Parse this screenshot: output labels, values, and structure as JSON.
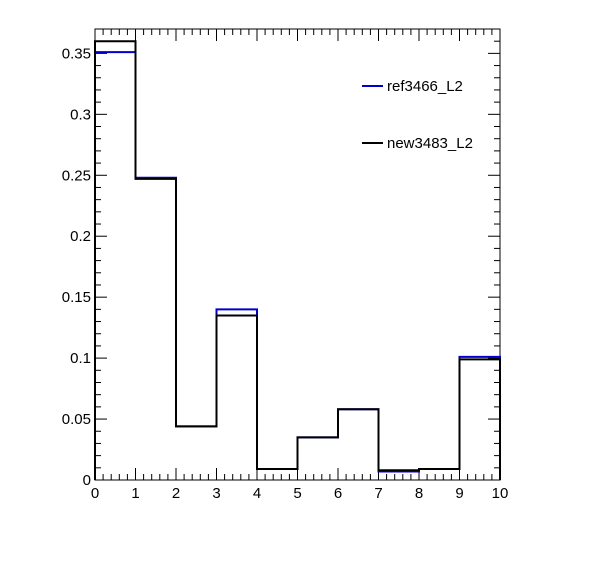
{
  "chart_data": {
    "type": "step",
    "title": "",
    "xlabel": "",
    "ylabel": "",
    "xlim": [
      0,
      10
    ],
    "ylim": [
      0,
      0.37
    ],
    "bin_edges": [
      0,
      1,
      2,
      3,
      4,
      5,
      6,
      7,
      8,
      9,
      10
    ],
    "x_ticks": [
      {
        "value": 0,
        "label": "0"
      },
      {
        "value": 1,
        "label": "1"
      },
      {
        "value": 2,
        "label": "2"
      },
      {
        "value": 3,
        "label": "3"
      },
      {
        "value": 4,
        "label": "4"
      },
      {
        "value": 5,
        "label": "5"
      },
      {
        "value": 6,
        "label": "6"
      },
      {
        "value": 7,
        "label": "7"
      },
      {
        "value": 8,
        "label": "8"
      },
      {
        "value": 9,
        "label": "9"
      },
      {
        "value": 10,
        "label": "10"
      }
    ],
    "y_ticks": [
      {
        "value": 0,
        "label": "0"
      },
      {
        "value": 0.05,
        "label": "0.05"
      },
      {
        "value": 0.1,
        "label": "0.1"
      },
      {
        "value": 0.15,
        "label": "0.15"
      },
      {
        "value": 0.2,
        "label": "0.2"
      },
      {
        "value": 0.25,
        "label": "0.25"
      },
      {
        "value": 0.3,
        "label": "0.3"
      },
      {
        "value": 0.35,
        "label": "0.35"
      }
    ],
    "series": [
      {
        "name": "ref3466_L2",
        "color": "#0000cc",
        "values": [
          0.351,
          0.248,
          0.044,
          0.14,
          0.009,
          0.035,
          0.058,
          0.007,
          0.009,
          0.101
        ]
      },
      {
        "name": "new3483_L2",
        "color": "#000000",
        "values": [
          0.36,
          0.247,
          0.044,
          0.135,
          0.009,
          0.035,
          0.058,
          0.008,
          0.009,
          0.099
        ]
      }
    ],
    "legend_position": "top-right",
    "grid": false
  }
}
